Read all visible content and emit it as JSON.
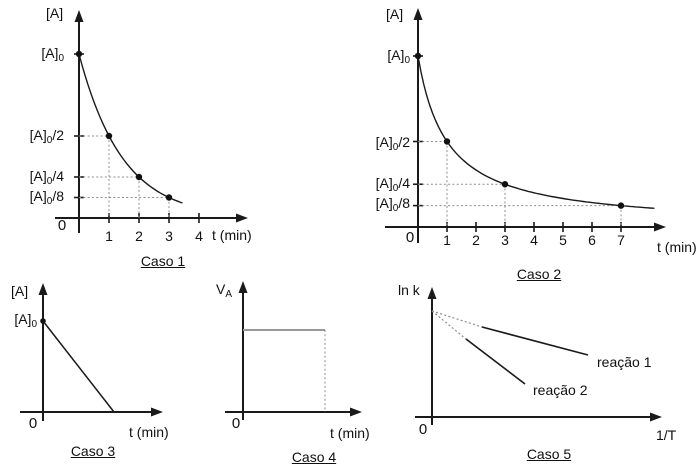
{
  "figure": {
    "background": "#ffffff"
  },
  "colors": {
    "axis": "#1a1a1a",
    "curve": "#1a1a1a",
    "point": "#111111",
    "guide": "#8c8c8c",
    "constant_line": "#999999",
    "text": "#111111"
  },
  "chart_data": [
    {
      "id": "caso-1",
      "type": "line",
      "title": "Caso 1",
      "ylabel": "[A]",
      "xlabel": "t (min)",
      "origin_label": "0",
      "x_ticks": [
        1,
        2,
        3,
        4
      ],
      "y_ticks": [
        {
          "fraction": 1,
          "label": {
            "base": "[A]",
            "sub": "0",
            "suffix": ""
          }
        },
        {
          "fraction": 0.5,
          "label": {
            "base": "[A]",
            "sub": "0",
            "suffix": "/2"
          }
        },
        {
          "fraction": 0.25,
          "label": {
            "base": "[A]",
            "sub": "0",
            "suffix": "/4"
          }
        },
        {
          "fraction": 0.125,
          "label": {
            "base": "[A]",
            "sub": "0",
            "suffix": "/8"
          }
        }
      ],
      "curve": "exponential-decay",
      "points": [
        {
          "t": 0,
          "fraction": 1
        },
        {
          "t": 1,
          "fraction": 0.5
        },
        {
          "t": 2,
          "fraction": 0.25
        },
        {
          "t": 3,
          "fraction": 0.125
        }
      ]
    },
    {
      "id": "caso-2",
      "type": "line",
      "title": "Caso 2",
      "ylabel": "[A]",
      "xlabel": "t (min)",
      "origin_label": "0",
      "x_ticks": [
        1,
        2,
        3,
        4,
        5,
        6,
        7
      ],
      "y_ticks": [
        {
          "fraction": 1,
          "label": {
            "base": "[A]",
            "sub": "0",
            "suffix": ""
          }
        },
        {
          "fraction": 0.5,
          "label": {
            "base": "[A]",
            "sub": "0",
            "suffix": "/2"
          }
        },
        {
          "fraction": 0.25,
          "label": {
            "base": "[A]",
            "sub": "0",
            "suffix": "/4"
          }
        },
        {
          "fraction": 0.125,
          "label": {
            "base": "[A]",
            "sub": "0",
            "suffix": "/8"
          }
        }
      ],
      "curve": "hyperbolic-decay",
      "points": [
        {
          "t": 0,
          "fraction": 1
        },
        {
          "t": 1,
          "fraction": 0.5
        },
        {
          "t": 3,
          "fraction": 0.25
        },
        {
          "t": 7,
          "fraction": 0.125
        }
      ]
    },
    {
      "id": "caso-3",
      "type": "line",
      "title": "Caso 3",
      "ylabel": "[A]",
      "xlabel": "t (min)",
      "origin_label": "0",
      "y_intercept_label": {
        "base": "[A]",
        "sub": "0",
        "suffix": ""
      },
      "curve": "linear-decay"
    },
    {
      "id": "caso-4",
      "type": "line",
      "title": "Caso 4",
      "ylabel": {
        "base": "V",
        "sub": "A"
      },
      "xlabel": "t (min)",
      "origin_label": "0",
      "curve": "constant"
    },
    {
      "id": "caso-5",
      "type": "line",
      "title": "Caso 5",
      "ylabel": "ln k",
      "xlabel": "1/T",
      "origin_label": "0",
      "curve": "linear-decreasing",
      "series": [
        {
          "name": "reação 1",
          "slope": "shallow"
        },
        {
          "name": "reação 2",
          "slope": "steep"
        }
      ]
    }
  ]
}
